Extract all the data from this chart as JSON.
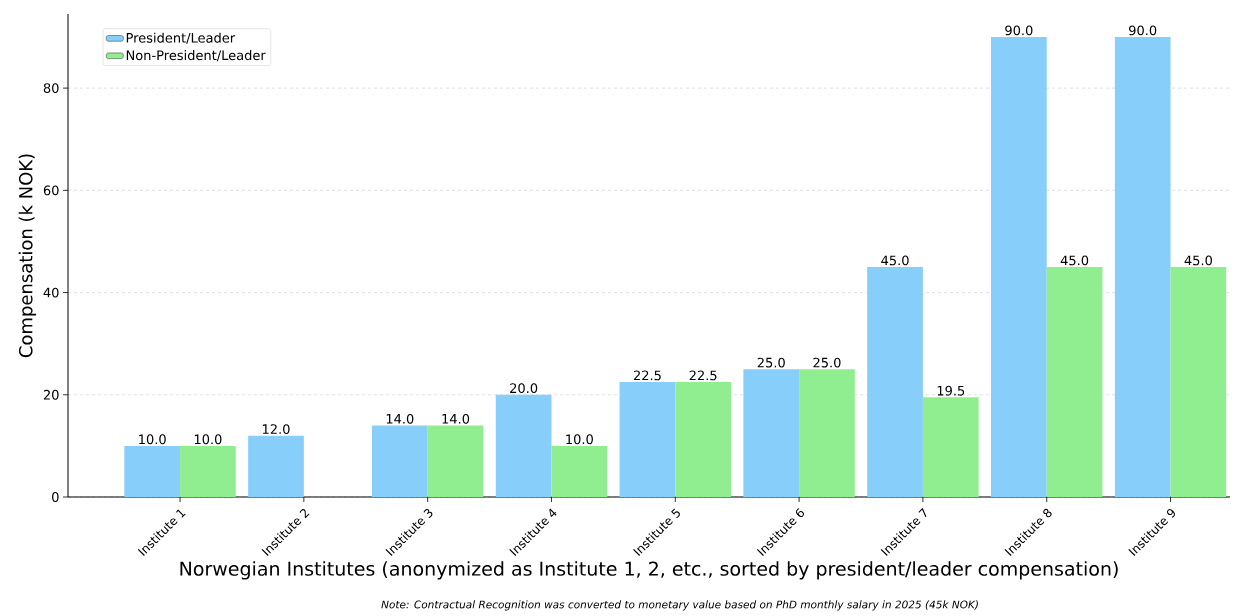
{
  "chart_data": {
    "type": "bar",
    "xlabel": "Norwegian Institutes (anonymized as Institute 1, 2, etc., sorted by president/leader compensation)",
    "ylabel": "Compensation (k NOK)",
    "categories": [
      "Institute 1",
      "Institute 2",
      "Institute 3",
      "Institute 4",
      "Institute 5",
      "Institute 6",
      "Institute 7",
      "Institute 8",
      "Institute 9"
    ],
    "series": [
      {
        "name": "President/Leader",
        "color": "#87cefa",
        "values": [
          10,
          12,
          14,
          20,
          22.5,
          25,
          45,
          90,
          90
        ],
        "value_labels": [
          "10.0",
          "12.0",
          "14.0",
          "20.0",
          "22.5",
          "25.0",
          "45.0",
          "90.0",
          "90.0"
        ]
      },
      {
        "name": "Non-President/Leader",
        "color": "#90ee90",
        "values": [
          10,
          null,
          14,
          10,
          22.5,
          25,
          19.5,
          45,
          45
        ],
        "value_labels": [
          "10.0",
          null,
          "14.0",
          "10.0",
          "22.5",
          "25.0",
          "19.5",
          "45.0",
          "45.0"
        ]
      }
    ],
    "ylim": [
      0,
      94.5
    ],
    "yticks": [
      0,
      20,
      40,
      60,
      80
    ],
    "grid": "y",
    "legend": "top left",
    "annotations": [
      "Note: Contractual Recognition was converted to monetary value based on PhD monthly salary in 2025 (45k NOK)"
    ]
  }
}
